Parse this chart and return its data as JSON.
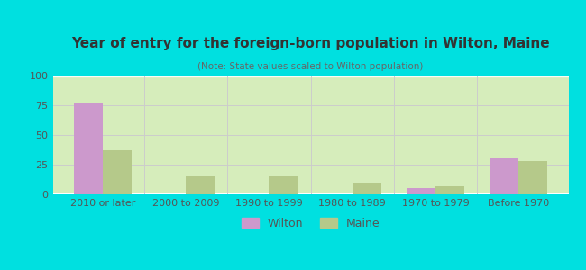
{
  "title": "Year of entry for the foreign-born population in Wilton, Maine",
  "subtitle": "(Note: State values scaled to Wilton population)",
  "categories": [
    "2010 or later",
    "2000 to 2009",
    "1990 to 1999",
    "1980 to 1989",
    "1970 to 1979",
    "Before 1970"
  ],
  "wilton_values": [
    77,
    0,
    0,
    0,
    5,
    30
  ],
  "maine_values": [
    37,
    15,
    15,
    10,
    7,
    28
  ],
  "wilton_color": "#cc99cc",
  "maine_color": "#b5c98a",
  "bar_width": 0.35,
  "ylim": [
    0,
    100
  ],
  "yticks": [
    0,
    25,
    50,
    75,
    100
  ],
  "background_outer": "#00e0e0",
  "grad_top": "#ffffff",
  "grad_bottom": "#d6edba",
  "grid_color": "#cccccc",
  "title_color": "#333333",
  "subtitle_color": "#666666",
  "axis_color": "#555555",
  "legend_wilton": "Wilton",
  "legend_maine": "Maine",
  "title_fontsize": 11,
  "subtitle_fontsize": 7.5,
  "tick_fontsize": 8
}
